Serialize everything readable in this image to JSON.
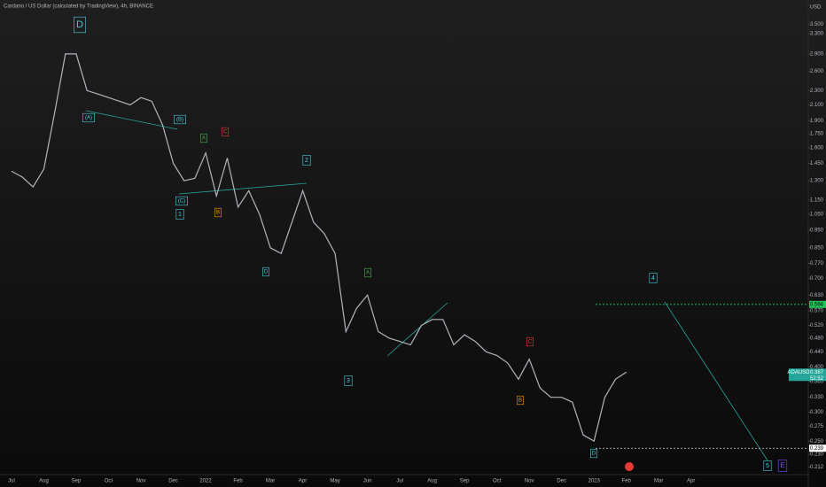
{
  "chart_data": {
    "type": "line",
    "title": "Cardano / US Dollar (calculated by TradingView), 4h, BINANCE",
    "currency": "USD",
    "symbol": "ADAUSD",
    "countdown": "52:52",
    "log_scale": true,
    "categories": [
      "Jul",
      null,
      null,
      "Aug",
      null,
      null,
      "Sep",
      null,
      null,
      "Oct",
      null,
      null,
      "Nov",
      null,
      null,
      "Dec",
      null,
      null,
      "2022",
      null,
      null,
      "Feb",
      null,
      null,
      "Mar",
      null,
      null,
      "Apr",
      null,
      null,
      "May",
      null,
      null,
      "Jun",
      null,
      null,
      "Jul",
      null,
      null,
      "Aug",
      null,
      null,
      "Sep",
      null,
      null,
      "Oct",
      null,
      null,
      "Nov",
      null,
      null,
      "Dec",
      null,
      null,
      "2023",
      null,
      null,
      "Feb",
      null,
      null,
      "Mar",
      null,
      null,
      "Apr",
      null,
      null
    ],
    "series": [
      {
        "name": "ADAUSD",
        "color": "#b2b5be",
        "values": [
          1.38,
          1.33,
          1.25,
          1.4,
          2.0,
          2.9,
          2.9,
          2.3,
          2.25,
          2.2,
          2.15,
          2.1,
          2.2,
          2.15,
          1.85,
          1.45,
          1.3,
          1.32,
          1.55,
          1.18,
          1.5,
          1.1,
          1.22,
          1.05,
          0.85,
          0.82,
          1.0,
          1.22,
          1.0,
          0.93,
          0.82,
          0.5,
          0.58,
          0.63,
          0.5,
          0.48,
          0.47,
          0.46,
          0.52,
          0.54,
          0.54,
          0.46,
          0.49,
          0.47,
          0.44,
          0.43,
          0.41,
          0.37,
          0.42,
          0.35,
          0.33,
          0.33,
          0.32,
          0.26,
          0.25,
          0.33,
          0.37,
          0.387,
          null,
          null,
          null,
          null,
          null,
          null,
          null,
          null
        ]
      }
    ],
    "ylim": [
      0.187,
      4.08
    ],
    "yticks": [
      {
        "value": 3.5,
        "label": "3.500"
      },
      {
        "value": 3.3,
        "label": "3.300"
      },
      {
        "value": 2.9,
        "label": "2.900"
      },
      {
        "value": 2.6,
        "label": "2.600"
      },
      {
        "value": 2.3,
        "label": "2.300"
      },
      {
        "value": 2.1,
        "label": "2.100"
      },
      {
        "value": 1.9,
        "label": "1.900"
      },
      {
        "value": 1.75,
        "label": "1.750"
      },
      {
        "value": 1.6,
        "label": "1.600"
      },
      {
        "value": 1.45,
        "label": "1.450"
      },
      {
        "value": 1.3,
        "label": "1.300"
      },
      {
        "value": 1.15,
        "label": "1.150"
      },
      {
        "value": 1.05,
        "label": "1.050"
      },
      {
        "value": 0.95,
        "label": "0.950"
      },
      {
        "value": 0.85,
        "label": "0.850"
      },
      {
        "value": 0.77,
        "label": "0.770"
      },
      {
        "value": 0.7,
        "label": "0.700"
      },
      {
        "value": 0.63,
        "label": "0.630"
      },
      {
        "value": 0.57,
        "label": "0.570"
      },
      {
        "value": 0.52,
        "label": "0.520"
      },
      {
        "value": 0.48,
        "label": "0.480"
      },
      {
        "value": 0.44,
        "label": "0.440"
      },
      {
        "value": 0.4,
        "label": "0.400"
      },
      {
        "value": 0.365,
        "label": "0.365"
      },
      {
        "value": 0.33,
        "label": "0.330"
      },
      {
        "value": 0.3,
        "label": "0.300"
      },
      {
        "value": 0.275,
        "label": "0.275"
      },
      {
        "value": 0.25,
        "label": "0.250"
      },
      {
        "value": 0.23,
        "label": "0.230"
      },
      {
        "value": 0.212,
        "label": "0.212"
      }
    ],
    "levels": [
      {
        "value": 0.594,
        "label": "0.594",
        "color": "#22c55e"
      },
      {
        "value": 0.239,
        "label": "0.239",
        "color": "#d1d4dc"
      }
    ],
    "last_price": {
      "value": 0.387,
      "label": "0.387",
      "color": "#26a69a"
    },
    "annotations": [
      {
        "text": "D",
        "color": "#4dd0e1"
      },
      {
        "text": "(A)",
        "color": "#4dd0e1"
      },
      {
        "text": "(B)",
        "color": "#4dd0e1"
      },
      {
        "text": "A",
        "color": "#4caf50"
      },
      {
        "text": "C",
        "color": "#e53935"
      },
      {
        "text": "2",
        "color": "#4dd0e1"
      },
      {
        "text": "(C)",
        "color": "#4dd0e1"
      },
      {
        "text": "1",
        "color": "#4dd0e1"
      },
      {
        "text": "B",
        "color": "#ff9800"
      },
      {
        "text": "D",
        "color": "#4dd0e1"
      },
      {
        "text": "A",
        "color": "#4caf50"
      },
      {
        "text": "3",
        "color": "#4dd0e1"
      },
      {
        "text": "C",
        "color": "#e53935"
      },
      {
        "text": "B",
        "color": "#ff9800"
      },
      {
        "text": "D",
        "color": "#4dd0e1"
      },
      {
        "text": "4",
        "color": "#4dd0e1"
      },
      {
        "text": "5",
        "color": "#4dd0e1"
      },
      {
        "text": "E",
        "color": "#7c4dff"
      }
    ]
  }
}
